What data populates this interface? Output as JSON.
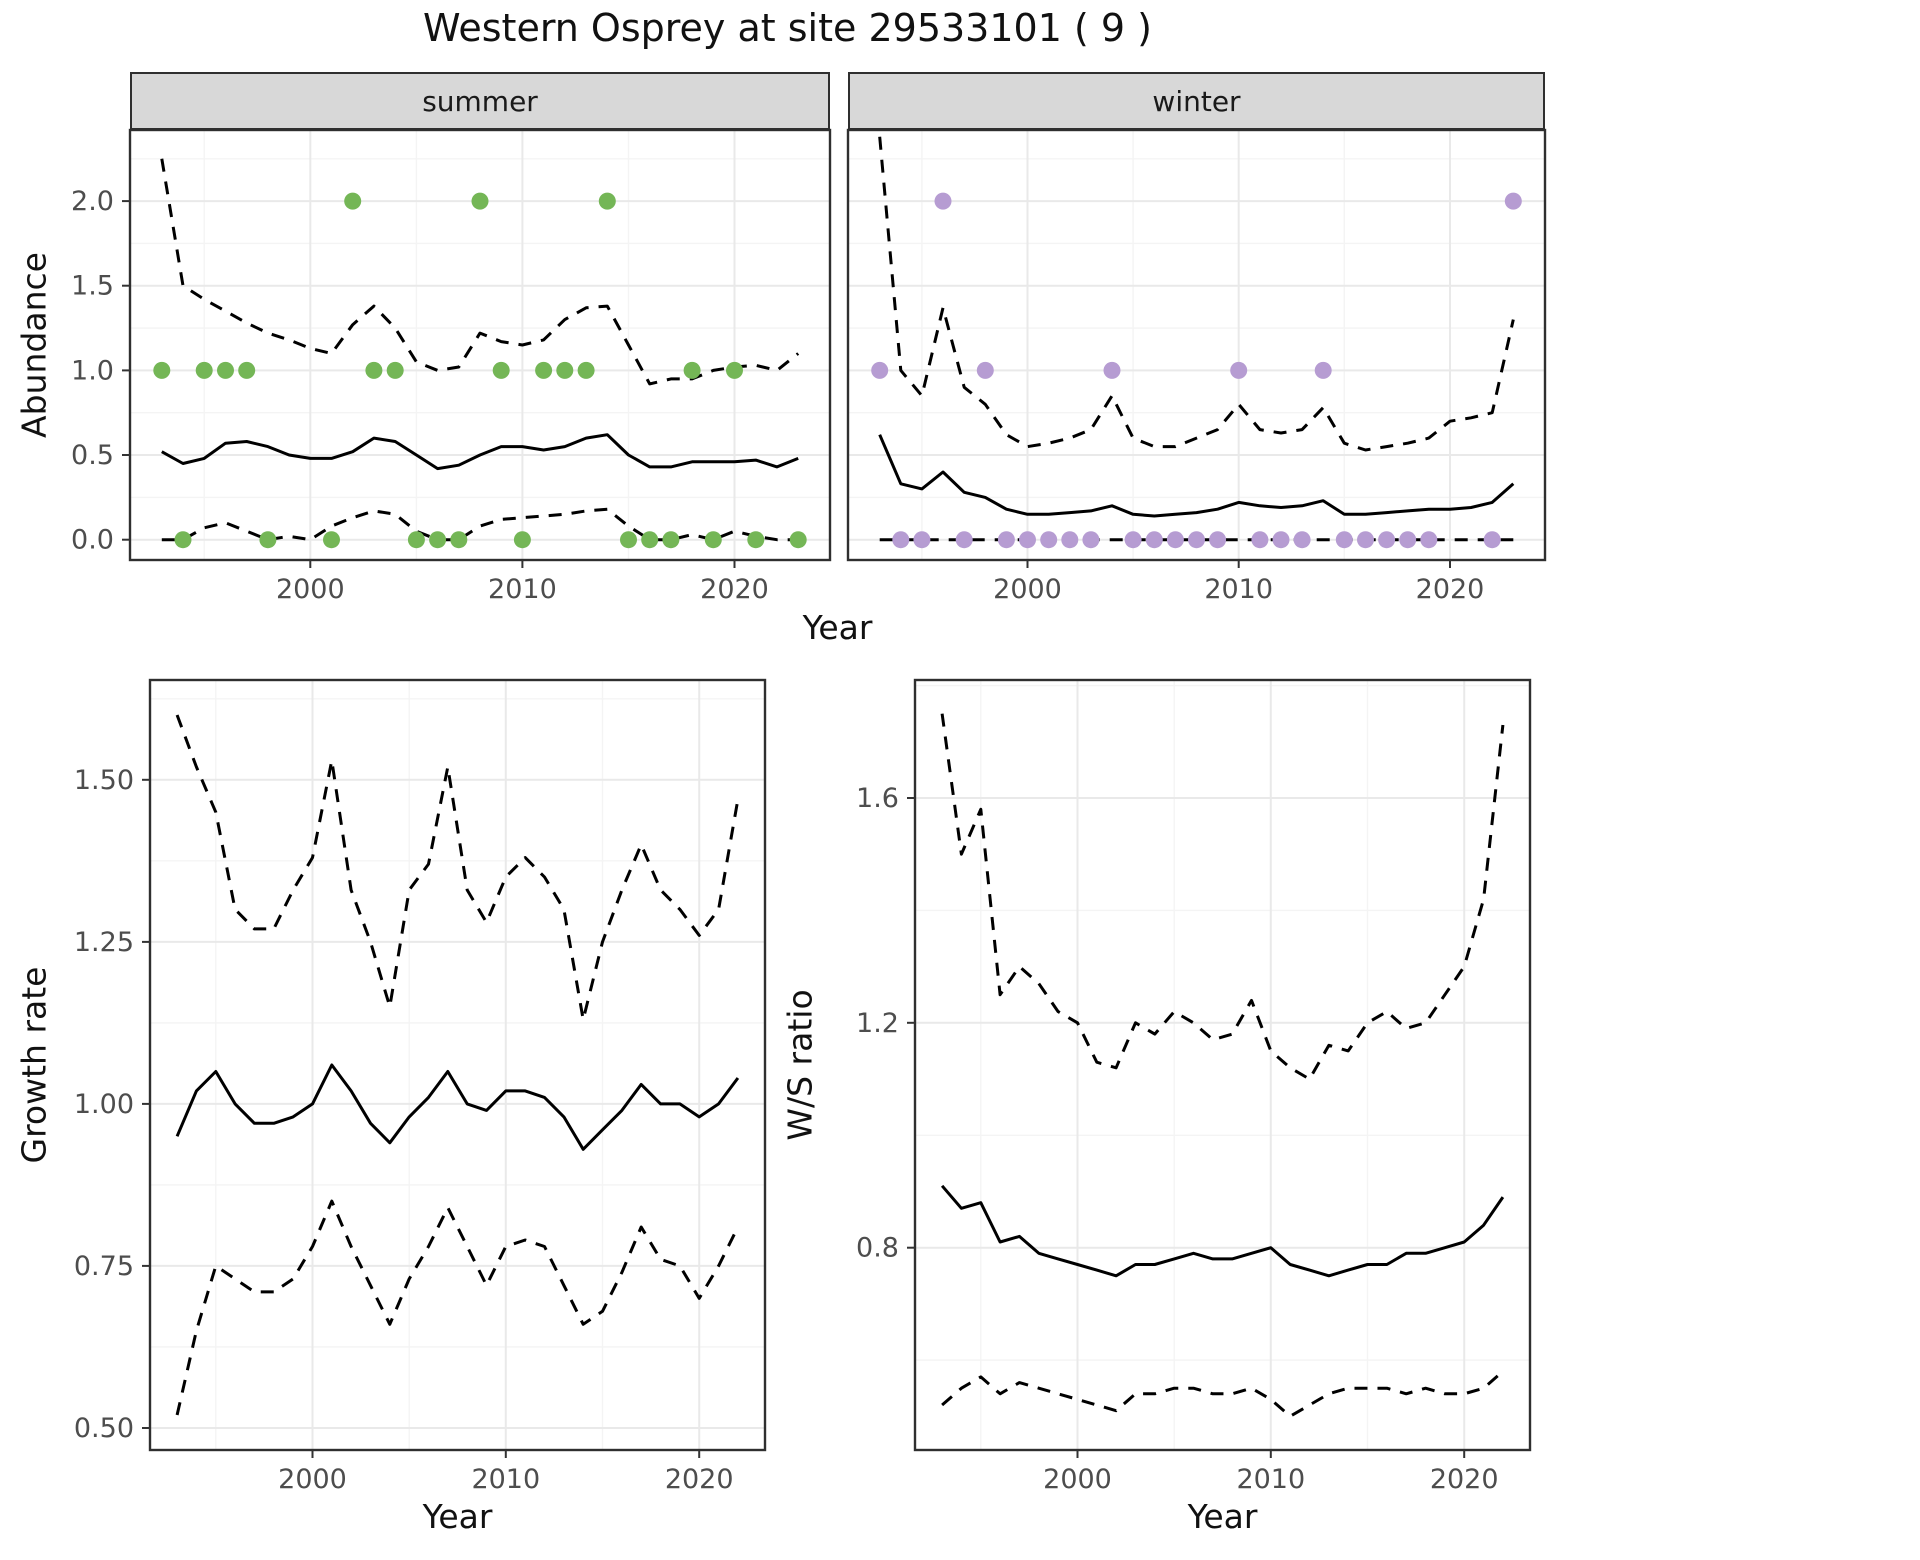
{
  "title": "Western Osprey at site 29533101 ( 9 )",
  "colors": {
    "summer_points": "#74b656",
    "winter_points": "#b69cd2",
    "line": "#000000",
    "strip_background": "#d8d8d8",
    "panel_border": "#2f2f2f"
  },
  "chart_data": [
    {
      "id": "abundance-summer",
      "type": "line",
      "facet_label": "summer",
      "ylabel": "Abundance",
      "xlabel": "Year",
      "xlim": [
        1991.5,
        2024.5
      ],
      "ylim": [
        -0.12,
        2.42
      ],
      "xticks": [
        2000,
        2010,
        2020
      ],
      "xtick_labels": [
        "2000",
        "2010",
        "2020"
      ],
      "yticks": [
        0.0,
        0.5,
        1.0,
        1.5,
        2.0
      ],
      "ytick_labels": [
        "0.0",
        "0.5",
        "1.0",
        "1.5",
        "2.0"
      ],
      "show_yticks": true,
      "grid": true,
      "legend": "none",
      "x": [
        1993,
        1994,
        1995,
        1996,
        1997,
        1998,
        1999,
        2000,
        2001,
        2002,
        2003,
        2004,
        2005,
        2006,
        2007,
        2008,
        2009,
        2010,
        2011,
        2012,
        2013,
        2014,
        2015,
        2016,
        2017,
        2018,
        2019,
        2020,
        2021,
        2022,
        2023
      ],
      "series": [
        {
          "name": "estimate",
          "style": "solid",
          "values": [
            0.52,
            0.45,
            0.48,
            0.57,
            0.58,
            0.55,
            0.5,
            0.48,
            0.48,
            0.52,
            0.6,
            0.58,
            0.5,
            0.42,
            0.44,
            0.5,
            0.55,
            0.55,
            0.53,
            0.55,
            0.6,
            0.62,
            0.5,
            0.43,
            0.43,
            0.46,
            0.46,
            0.46,
            0.47,
            0.43,
            0.48
          ]
        },
        {
          "name": "upper_ci",
          "style": "dashed",
          "values": [
            2.25,
            1.5,
            1.42,
            1.35,
            1.28,
            1.22,
            1.18,
            1.13,
            1.1,
            1.27,
            1.38,
            1.25,
            1.05,
            1.0,
            1.02,
            1.22,
            1.17,
            1.15,
            1.18,
            1.3,
            1.37,
            1.38,
            1.15,
            0.92,
            0.95,
            0.95,
            1.0,
            1.02,
            1.03,
            1.0,
            1.1
          ]
        },
        {
          "name": "lower_ci",
          "style": "dashed",
          "values": [
            0.0,
            0.0,
            0.07,
            0.1,
            0.05,
            0.0,
            0.02,
            0.0,
            0.08,
            0.13,
            0.17,
            0.15,
            0.05,
            0.0,
            0.0,
            0.08,
            0.12,
            0.13,
            0.14,
            0.15,
            0.17,
            0.18,
            0.08,
            0.0,
            0.0,
            0.03,
            0.0,
            0.05,
            0.02,
            0.0,
            0.0
          ]
        }
      ],
      "observations": {
        "name": "observed-counts",
        "color": "#74b656",
        "points": [
          [
            1993,
            1
          ],
          [
            1994,
            0
          ],
          [
            1995,
            1
          ],
          [
            1996,
            1
          ],
          [
            1997,
            1
          ],
          [
            1998,
            0
          ],
          [
            2001,
            0
          ],
          [
            2002,
            2
          ],
          [
            2003,
            1
          ],
          [
            2004,
            1
          ],
          [
            2005,
            0
          ],
          [
            2006,
            0
          ],
          [
            2007,
            0
          ],
          [
            2008,
            2
          ],
          [
            2009,
            1
          ],
          [
            2010,
            0
          ],
          [
            2011,
            1
          ],
          [
            2012,
            1
          ],
          [
            2013,
            1
          ],
          [
            2014,
            2
          ],
          [
            2015,
            0
          ],
          [
            2016,
            0
          ],
          [
            2017,
            0
          ],
          [
            2018,
            1
          ],
          [
            2019,
            0
          ],
          [
            2020,
            1
          ],
          [
            2021,
            0
          ],
          [
            2023,
            0
          ]
        ]
      }
    },
    {
      "id": "abundance-winter",
      "type": "line",
      "facet_label": "winter",
      "xlabel": "Year",
      "xlim": [
        1991.5,
        2024.5
      ],
      "ylim": [
        -0.12,
        2.42
      ],
      "xticks": [
        2000,
        2010,
        2020
      ],
      "xtick_labels": [
        "2000",
        "2010",
        "2020"
      ],
      "yticks": [
        0.0,
        0.5,
        1.0,
        1.5,
        2.0
      ],
      "ytick_labels": [
        "0.0",
        "0.5",
        "1.0",
        "1.5",
        "2.0"
      ],
      "show_yticks": false,
      "grid": true,
      "legend": "none",
      "x": [
        1993,
        1994,
        1995,
        1996,
        1997,
        1998,
        1999,
        2000,
        2001,
        2002,
        2003,
        2004,
        2005,
        2006,
        2007,
        2008,
        2009,
        2010,
        2011,
        2012,
        2013,
        2014,
        2015,
        2016,
        2017,
        2018,
        2019,
        2020,
        2021,
        2022,
        2023
      ],
      "series": [
        {
          "name": "estimate",
          "style": "solid",
          "values": [
            0.62,
            0.33,
            0.3,
            0.4,
            0.28,
            0.25,
            0.18,
            0.15,
            0.15,
            0.16,
            0.17,
            0.2,
            0.15,
            0.14,
            0.15,
            0.16,
            0.18,
            0.22,
            0.2,
            0.19,
            0.2,
            0.23,
            0.15,
            0.15,
            0.16,
            0.17,
            0.18,
            0.18,
            0.19,
            0.22,
            0.33
          ]
        },
        {
          "name": "upper_ci",
          "style": "dashed",
          "values": [
            2.38,
            1.0,
            0.85,
            1.37,
            0.9,
            0.8,
            0.62,
            0.55,
            0.57,
            0.6,
            0.65,
            0.85,
            0.6,
            0.55,
            0.55,
            0.6,
            0.65,
            0.8,
            0.65,
            0.63,
            0.65,
            0.78,
            0.57,
            0.53,
            0.55,
            0.57,
            0.6,
            0.7,
            0.72,
            0.75,
            1.3
          ]
        },
        {
          "name": "lower_ci",
          "style": "dashed",
          "values": [
            0,
            0,
            0,
            0,
            0,
            0,
            0,
            0,
            0,
            0,
            0,
            0,
            0,
            0,
            0,
            0,
            0,
            0,
            0,
            0,
            0,
            0,
            0,
            0,
            0,
            0,
            0,
            0,
            0,
            0,
            0
          ]
        }
      ],
      "observations": {
        "name": "observed-counts",
        "color": "#b69cd2",
        "points": [
          [
            1993,
            1
          ],
          [
            1994,
            0
          ],
          [
            1995,
            0
          ],
          [
            1996,
            2
          ],
          [
            1997,
            0
          ],
          [
            1998,
            1
          ],
          [
            1999,
            0
          ],
          [
            2000,
            0
          ],
          [
            2001,
            0
          ],
          [
            2002,
            0
          ],
          [
            2003,
            0
          ],
          [
            2004,
            1
          ],
          [
            2005,
            0
          ],
          [
            2006,
            0
          ],
          [
            2007,
            0
          ],
          [
            2008,
            0
          ],
          [
            2009,
            0
          ],
          [
            2010,
            1
          ],
          [
            2011,
            0
          ],
          [
            2012,
            0
          ],
          [
            2013,
            0
          ],
          [
            2014,
            1
          ],
          [
            2015,
            0
          ],
          [
            2016,
            0
          ],
          [
            2017,
            0
          ],
          [
            2018,
            0
          ],
          [
            2019,
            0
          ],
          [
            2022,
            0
          ],
          [
            2023,
            2
          ]
        ]
      }
    },
    {
      "id": "growth-rate",
      "type": "line",
      "ylabel": "Growth rate",
      "xlabel": "Year",
      "xlim": [
        1991.6,
        2023.4
      ],
      "ylim": [
        0.466,
        1.654
      ],
      "xticks": [
        2000,
        2010,
        2020
      ],
      "xtick_labels": [
        "2000",
        "2010",
        "2020"
      ],
      "yticks": [
        0.5,
        0.75,
        1.0,
        1.25,
        1.5
      ],
      "ytick_labels": [
        "0.50",
        "0.75",
        "1.00",
        "1.25",
        "1.50"
      ],
      "show_yticks": true,
      "grid": true,
      "legend": "none",
      "x": [
        1993,
        1994,
        1995,
        1996,
        1997,
        1998,
        1999,
        2000,
        2001,
        2002,
        2003,
        2004,
        2005,
        2006,
        2007,
        2008,
        2009,
        2010,
        2011,
        2012,
        2013,
        2014,
        2015,
        2016,
        2017,
        2018,
        2019,
        2020,
        2021,
        2022
      ],
      "series": [
        {
          "name": "estimate",
          "style": "solid",
          "values": [
            0.95,
            1.02,
            1.05,
            1.0,
            0.97,
            0.97,
            0.98,
            1.0,
            1.06,
            1.02,
            0.97,
            0.94,
            0.98,
            1.01,
            1.05,
            1.0,
            0.99,
            1.02,
            1.02,
            1.01,
            0.98,
            0.93,
            0.96,
            0.99,
            1.03,
            1.0,
            1.0,
            0.98,
            1.0,
            1.04
          ]
        },
        {
          "name": "upper_ci",
          "style": "dashed",
          "values": [
            1.6,
            1.52,
            1.45,
            1.3,
            1.27,
            1.27,
            1.33,
            1.38,
            1.53,
            1.33,
            1.25,
            1.15,
            1.33,
            1.37,
            1.52,
            1.33,
            1.28,
            1.35,
            1.38,
            1.35,
            1.3,
            1.13,
            1.25,
            1.33,
            1.4,
            1.33,
            1.3,
            1.26,
            1.3,
            1.47
          ]
        },
        {
          "name": "lower_ci",
          "style": "dashed",
          "values": [
            0.52,
            0.65,
            0.75,
            0.73,
            0.71,
            0.71,
            0.73,
            0.78,
            0.85,
            0.78,
            0.72,
            0.66,
            0.73,
            0.78,
            0.84,
            0.78,
            0.72,
            0.78,
            0.79,
            0.78,
            0.72,
            0.66,
            0.68,
            0.74,
            0.81,
            0.76,
            0.75,
            0.7,
            0.75,
            0.81
          ]
        }
      ]
    },
    {
      "id": "ws-ratio",
      "type": "line",
      "ylabel": "W/S ratio",
      "xlabel": "Year",
      "xlim": [
        1991.6,
        2023.4
      ],
      "ylim": [
        0.44,
        1.81
      ],
      "xticks": [
        2000,
        2010,
        2020
      ],
      "xtick_labels": [
        "2000",
        "2010",
        "2020"
      ],
      "yticks": [
        0.8,
        1.2,
        1.6
      ],
      "ytick_labels": [
        "0.8",
        "1.2",
        "1.6"
      ],
      "show_yticks": true,
      "grid": true,
      "legend": "none",
      "x": [
        1993,
        1994,
        1995,
        1996,
        1997,
        1998,
        1999,
        2000,
        2001,
        2002,
        2003,
        2004,
        2005,
        2006,
        2007,
        2008,
        2009,
        2010,
        2011,
        2012,
        2013,
        2014,
        2015,
        2016,
        2017,
        2018,
        2019,
        2020,
        2021,
        2022
      ],
      "series": [
        {
          "name": "estimate",
          "style": "solid",
          "values": [
            0.91,
            0.87,
            0.88,
            0.81,
            0.82,
            0.79,
            0.78,
            0.77,
            0.76,
            0.75,
            0.77,
            0.77,
            0.78,
            0.79,
            0.78,
            0.78,
            0.79,
            0.8,
            0.77,
            0.76,
            0.75,
            0.76,
            0.77,
            0.77,
            0.79,
            0.79,
            0.8,
            0.81,
            0.84,
            0.89
          ]
        },
        {
          "name": "upper_ci",
          "style": "dashed",
          "values": [
            1.75,
            1.5,
            1.58,
            1.25,
            1.3,
            1.27,
            1.22,
            1.2,
            1.13,
            1.12,
            1.2,
            1.18,
            1.22,
            1.2,
            1.17,
            1.18,
            1.24,
            1.15,
            1.12,
            1.1,
            1.16,
            1.15,
            1.2,
            1.22,
            1.19,
            1.2,
            1.25,
            1.3,
            1.42,
            1.73
          ]
        },
        {
          "name": "lower_ci",
          "style": "dashed",
          "values": [
            0.52,
            0.55,
            0.57,
            0.54,
            0.56,
            0.55,
            0.54,
            0.53,
            0.52,
            0.51,
            0.54,
            0.54,
            0.55,
            0.55,
            0.54,
            0.54,
            0.55,
            0.53,
            0.5,
            0.52,
            0.54,
            0.55,
            0.55,
            0.55,
            0.54,
            0.55,
            0.54,
            0.54,
            0.55,
            0.58
          ]
        }
      ]
    }
  ]
}
